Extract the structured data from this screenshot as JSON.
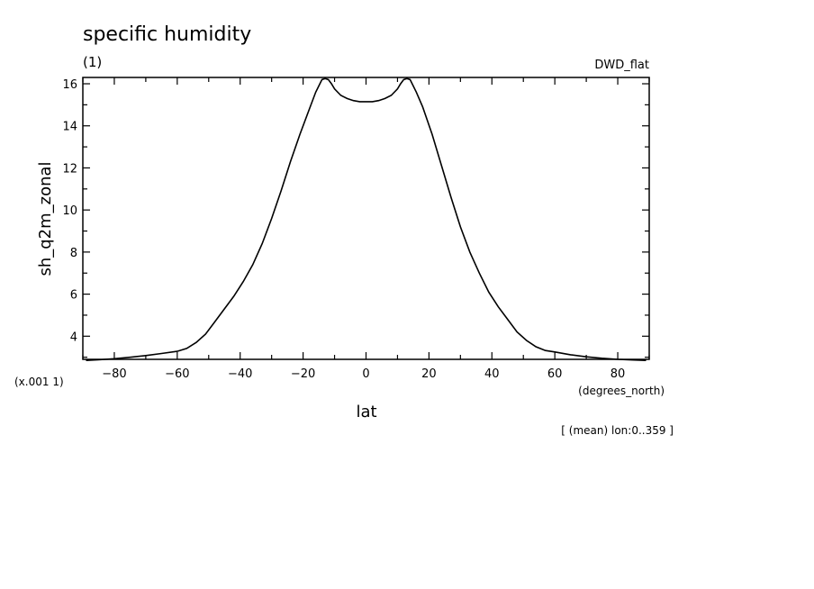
{
  "title": "specific humidity",
  "units_line": "(1)",
  "dataset": "DWD_flat",
  "chart_data": {
    "type": "line",
    "title": "specific humidity",
    "xlabel": "lat",
    "xunits": "(degrees_north)",
    "ylabel": "sh_q2m_zonal",
    "yscale_note": "(x.001 1)",
    "annotation": "[ (mean) lon:0..359 ]",
    "xlim": [
      -90,
      90
    ],
    "ylim": [
      2.9,
      16.3
    ],
    "xticks": [
      -80,
      -60,
      -40,
      -20,
      0,
      20,
      40,
      60,
      80
    ],
    "yticks": [
      4,
      6,
      8,
      10,
      12,
      14,
      16
    ],
    "grid": false,
    "series": [
      {
        "x": [
          -89,
          -85,
          -80,
          -75,
          -70,
          -65,
          -60,
          -57,
          -54,
          -51,
          -48,
          -45,
          -42,
          -39,
          -36,
          -33,
          -30,
          -27,
          -24,
          -21,
          -18,
          -16,
          -14,
          -13,
          -12,
          -11,
          -10,
          -8,
          -6,
          -4,
          -2,
          0,
          2,
          4,
          6,
          8,
          10,
          11,
          12,
          13,
          14,
          16,
          18,
          21,
          24,
          27,
          30,
          33,
          36,
          39,
          42,
          45,
          48,
          51,
          54,
          57,
          60,
          65,
          70,
          75,
          80,
          85,
          89
        ],
        "y": [
          2.85,
          2.88,
          2.93,
          3.0,
          3.08,
          3.18,
          3.28,
          3.42,
          3.7,
          4.1,
          4.7,
          5.3,
          5.9,
          6.6,
          7.4,
          8.4,
          9.6,
          10.9,
          12.3,
          13.6,
          14.8,
          15.6,
          16.2,
          16.25,
          16.2,
          16.0,
          15.75,
          15.45,
          15.3,
          15.2,
          15.15,
          15.15,
          15.15,
          15.2,
          15.3,
          15.45,
          15.75,
          16.0,
          16.2,
          16.25,
          16.2,
          15.6,
          14.9,
          13.6,
          12.1,
          10.6,
          9.2,
          8.0,
          7.0,
          6.1,
          5.4,
          4.8,
          4.2,
          3.8,
          3.5,
          3.32,
          3.25,
          3.12,
          3.02,
          2.95,
          2.9,
          2.87,
          2.85
        ]
      }
    ]
  }
}
